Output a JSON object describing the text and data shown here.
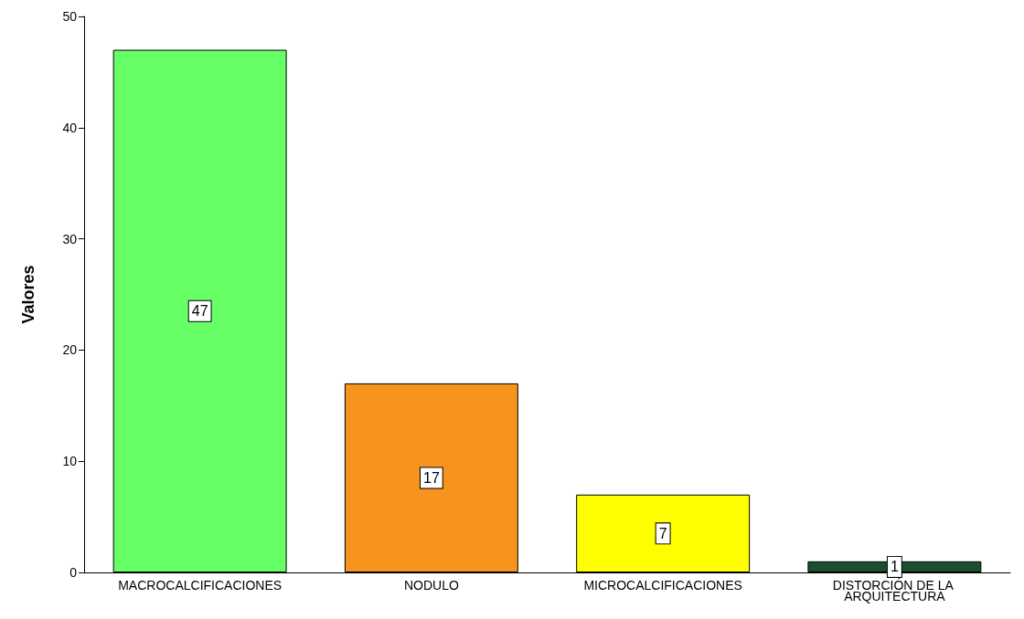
{
  "chart_data": {
    "type": "bar",
    "ylabel": "Valores",
    "categories": [
      "MACROCALCIFICACIONES",
      "NODULO",
      "MICROCALCIFICACIONES",
      "DISTORCIÓN DE LA ARQUITECTURA"
    ],
    "values": [
      47,
      17,
      7,
      1
    ],
    "colors": [
      "#66ff66",
      "#f7941d",
      "#ffff00",
      "#1b4d2e"
    ],
    "ylim": [
      0,
      50
    ],
    "yticks": [
      0,
      10,
      20,
      30,
      40,
      50
    ],
    "grid": false,
    "data_labels": true
  }
}
